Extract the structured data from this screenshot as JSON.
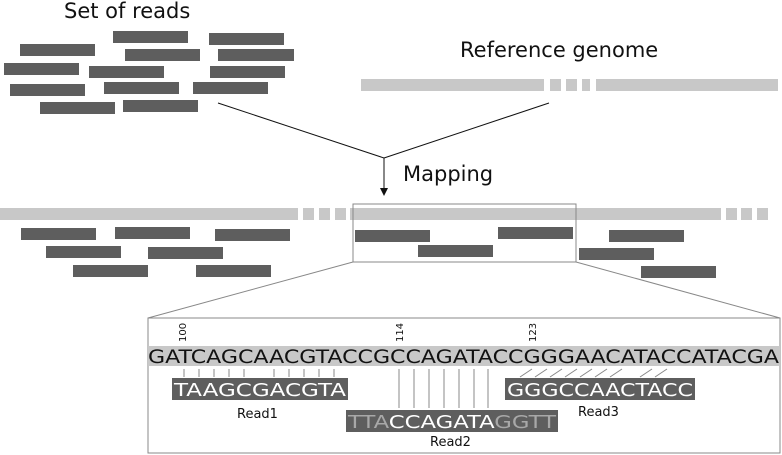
{
  "labels": {
    "reads_set": "Set of reads",
    "reference": "Reference genome",
    "mapping": "Mapping"
  },
  "colors": {
    "read": "#5e5e5e",
    "reference": "#c8c8c8",
    "read_text": "#ffffff",
    "mismatch_text": "#a8a8a8",
    "line": "#777777",
    "text": "#111111"
  },
  "detail": {
    "reference_sequence": "GATCAGCAACGTACCGCCAGATACCGGGAACATACCATACGA",
    "positions": [
      "100",
      "114",
      "123"
    ],
    "reads": [
      {
        "name": "Read1",
        "sequence": "TAAGCGACGTA",
        "segments": [
          {
            "text": "TAAGCGACGTA",
            "mismatch": false
          }
        ]
      },
      {
        "name": "Read2",
        "sequence": "TTACCAGATAGGTT",
        "segments": [
          {
            "text": "TTA",
            "mismatch": true
          },
          {
            "text": "CCAGATA",
            "mismatch": false
          },
          {
            "text": "GGTT",
            "mismatch": true
          }
        ]
      },
      {
        "name": "Read3",
        "sequence": "GGGCCAACTACC",
        "segments": [
          {
            "text": "GGGCCAACTACC",
            "mismatch": false
          }
        ]
      }
    ]
  }
}
